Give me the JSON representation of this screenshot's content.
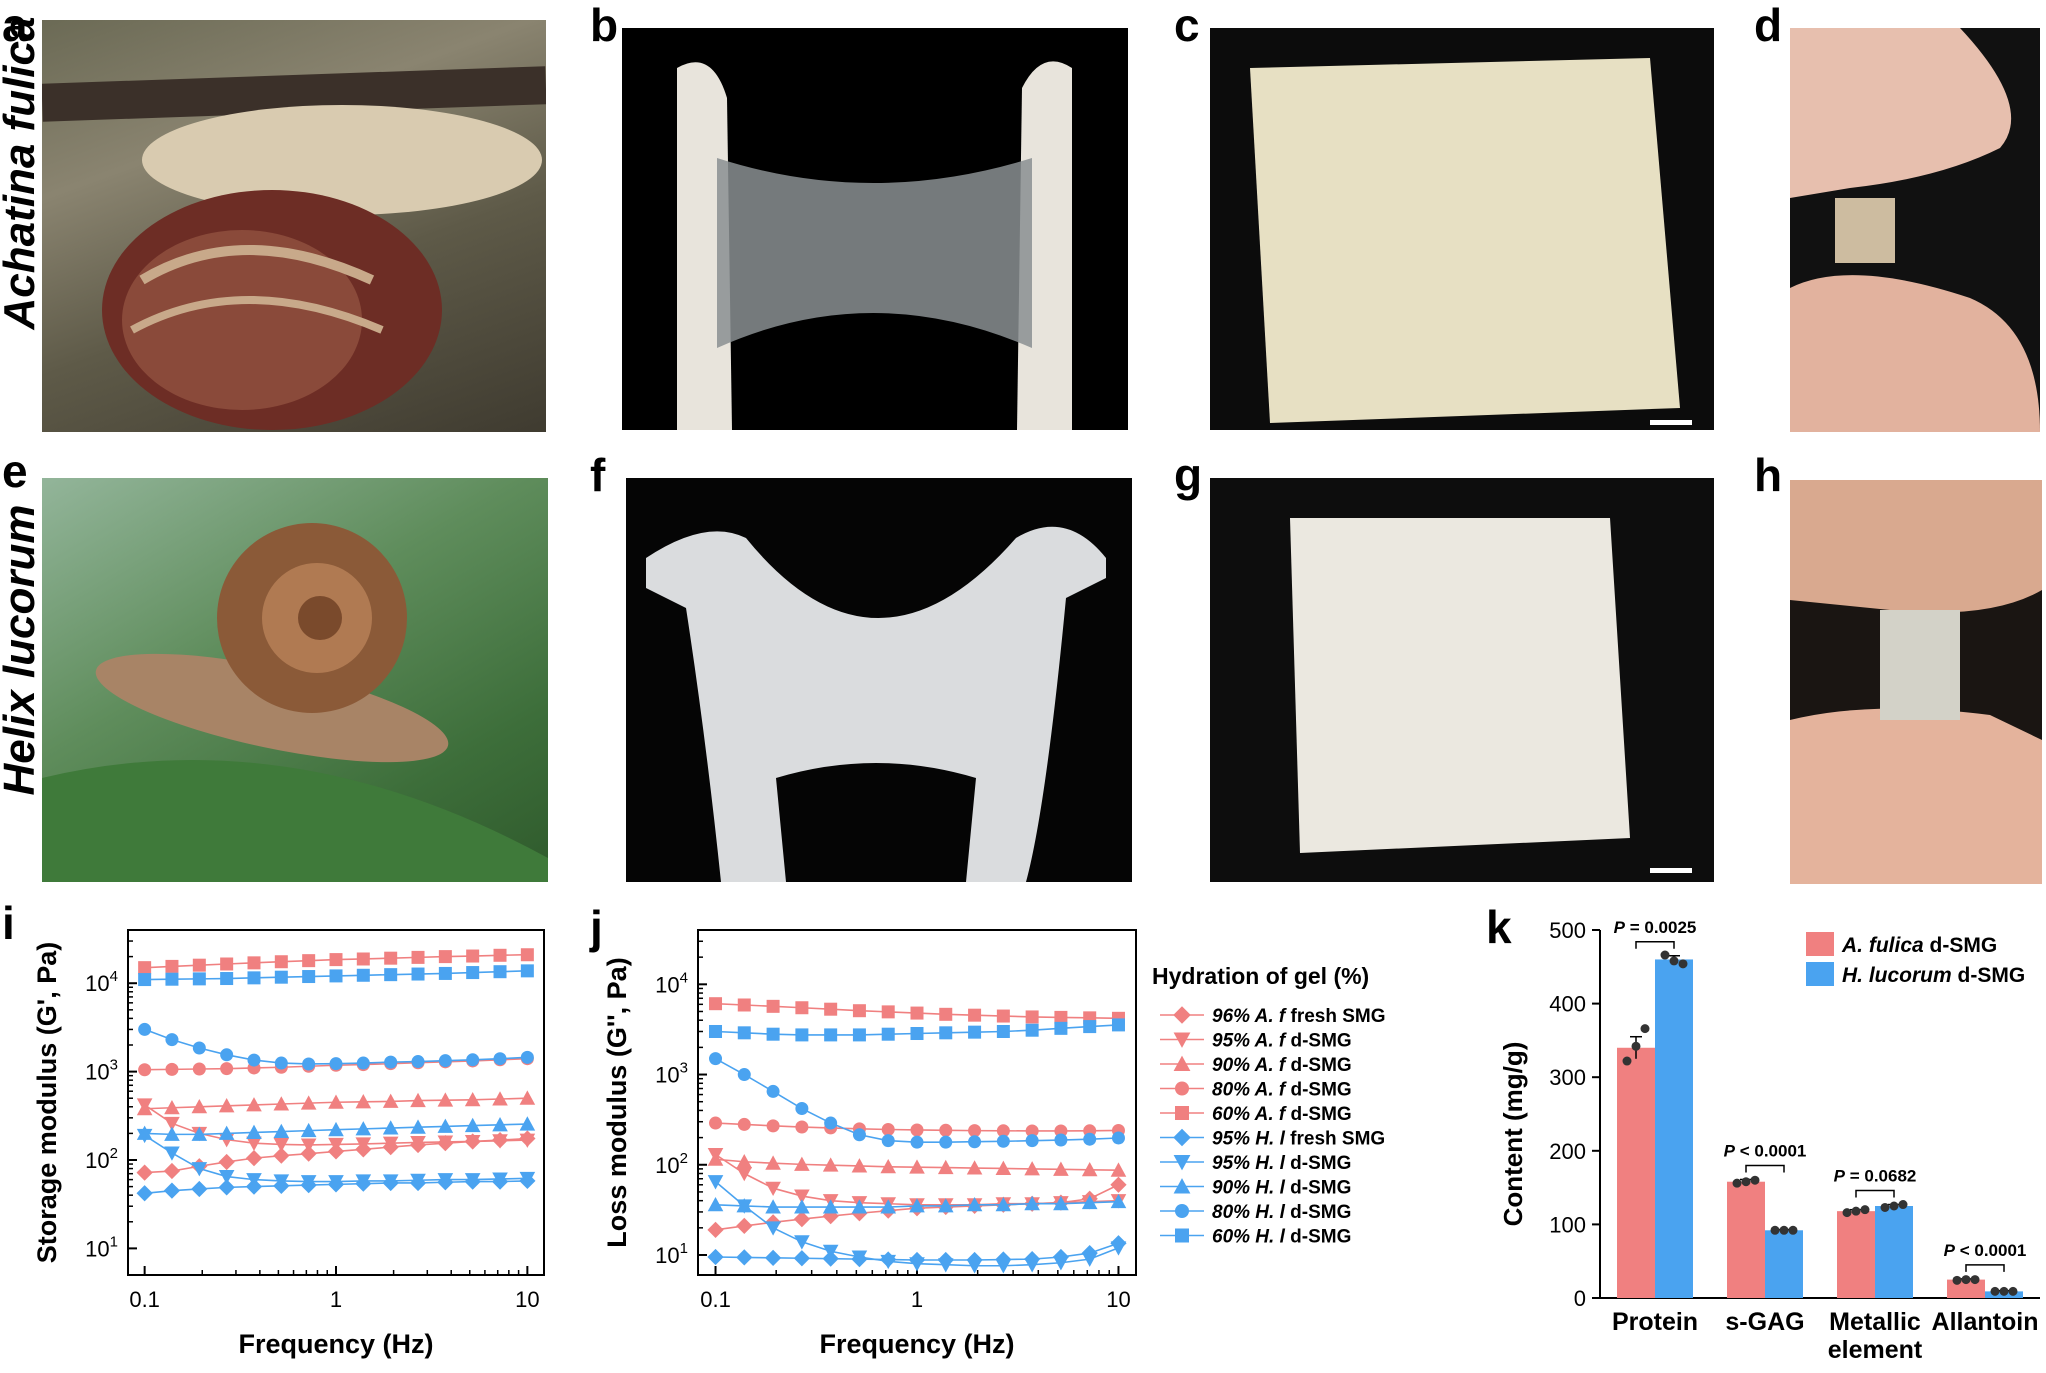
{
  "panels": {
    "a": "a",
    "b": "b",
    "c": "c",
    "d": "d",
    "e": "e",
    "f": "f",
    "g": "g",
    "h": "h",
    "i": "i",
    "j": "j",
    "k": "k"
  },
  "species_labels": {
    "top": "Achatina fulica",
    "bottom": "Helix lucorum"
  },
  "colors": {
    "red": "#f08080",
    "blue": "#4aa3f0",
    "red_dark": "#e66a6a",
    "blue_dark": "#3a8de0"
  },
  "chart_data": [
    {
      "type": "line",
      "panel": "i",
      "xlabel": "Frequency (Hz)",
      "ylabel": "Storage modulus (G', Pa)",
      "xscale": "log",
      "yscale": "log",
      "xlim": [
        0.1,
        10
      ],
      "ylim": [
        5,
        40000
      ],
      "xticks": [
        "0.1",
        "1",
        "10"
      ],
      "yticks": [
        {
          "v": 10,
          "base": "10",
          "exp": "1"
        },
        {
          "v": 100,
          "base": "10",
          "exp": "2"
        },
        {
          "v": 1000,
          "base": "10",
          "exp": "3"
        },
        {
          "v": 10000,
          "base": "10",
          "exp": "4"
        }
      ],
      "x": [
        0.1,
        0.1389,
        0.1931,
        0.2683,
        0.3728,
        0.5179,
        0.7197,
        1.0,
        1.389,
        1.931,
        2.683,
        3.728,
        5.179,
        7.197,
        10.0
      ],
      "series": [
        {
          "name": "96% A. f fresh SMG",
          "color": "#f08080",
          "marker": "diamond",
          "values": [
            72,
            75,
            85,
            95,
            105,
            112,
            118,
            125,
            132,
            140,
            148,
            155,
            162,
            168,
            175
          ]
        },
        {
          "name": "95% A. f d-SMG",
          "color": "#f08080",
          "marker": "tri-down",
          "values": [
            420,
            260,
            200,
            170,
            155,
            150,
            148,
            150,
            152,
            155,
            158,
            160,
            162,
            165,
            168
          ]
        },
        {
          "name": "90% A. f d-SMG",
          "color": "#f08080",
          "marker": "tri-up",
          "values": [
            380,
            390,
            400,
            410,
            420,
            430,
            440,
            450,
            455,
            460,
            470,
            475,
            480,
            490,
            500
          ]
        },
        {
          "name": "80% A. f d-SMG",
          "color": "#f08080",
          "marker": "circle",
          "values": [
            1050,
            1060,
            1070,
            1080,
            1100,
            1120,
            1150,
            1180,
            1200,
            1230,
            1260,
            1290,
            1320,
            1360,
            1400
          ]
        },
        {
          "name": "60% A. f d-SMG",
          "color": "#f08080",
          "marker": "square",
          "values": [
            15000,
            15500,
            16000,
            16500,
            17000,
            17500,
            18000,
            18500,
            18800,
            19200,
            19600,
            20000,
            20300,
            20700,
            21000
          ]
        },
        {
          "name": "95% H. l fresh SMG",
          "color": "#4aa3f0",
          "marker": "diamond",
          "values": [
            42,
            45,
            47,
            49,
            50,
            51,
            52,
            53,
            54,
            55,
            55,
            56,
            57,
            57,
            58
          ]
        },
        {
          "name": "95% H. l d-SMG",
          "color": "#4aa3f0",
          "marker": "tri-down",
          "values": [
            190,
            120,
            80,
            65,
            60,
            58,
            57,
            57,
            58,
            58,
            59,
            60,
            60,
            61,
            62
          ]
        },
        {
          "name": "90% H. l d-SMG",
          "color": "#4aa3f0",
          "marker": "tri-up",
          "values": [
            200,
            195,
            195,
            200,
            205,
            210,
            215,
            220,
            225,
            230,
            235,
            240,
            245,
            250,
            255
          ]
        },
        {
          "name": "80% H. l d-SMG",
          "color": "#4aa3f0",
          "marker": "circle",
          "values": [
            3000,
            2300,
            1850,
            1550,
            1350,
            1250,
            1220,
            1230,
            1250,
            1280,
            1300,
            1330,
            1360,
            1400,
            1450
          ]
        },
        {
          "name": "60% H. l d-SMG",
          "color": "#4aa3f0",
          "marker": "square",
          "values": [
            11000,
            11100,
            11200,
            11300,
            11500,
            11700,
            11900,
            12100,
            12300,
            12500,
            12700,
            12900,
            13200,
            13500,
            13800
          ]
        }
      ]
    },
    {
      "type": "line",
      "panel": "j",
      "xlabel": "Frequency (Hz)",
      "ylabel": "Loss modulus (G'', Pa)",
      "xscale": "log",
      "yscale": "log",
      "xlim": [
        0.1,
        10
      ],
      "ylim": [
        6,
        40000
      ],
      "xticks": [
        "0.1",
        "1",
        "10"
      ],
      "yticks": [
        {
          "v": 10,
          "base": "10",
          "exp": "1"
        },
        {
          "v": 100,
          "base": "10",
          "exp": "2"
        },
        {
          "v": 1000,
          "base": "10",
          "exp": "3"
        },
        {
          "v": 10000,
          "base": "10",
          "exp": "4"
        }
      ],
      "legend_title": "Hydration of gel (%)",
      "x": [
        0.1,
        0.1389,
        0.1931,
        0.2683,
        0.3728,
        0.5179,
        0.7197,
        1.0,
        1.389,
        1.931,
        2.683,
        3.728,
        5.179,
        7.197,
        10.0
      ],
      "series": [
        {
          "name": "96% A. f fresh SMG",
          "pct": "96%",
          "sp": "A. f",
          "suffix": "fresh SMG",
          "color": "#f08080",
          "marker": "diamond",
          "values": [
            19,
            21,
            23,
            25,
            27,
            29,
            31,
            33,
            34,
            35,
            36,
            37,
            38,
            42,
            60
          ]
        },
        {
          "name": "95% A. f d-SMG",
          "pct": "95%",
          "sp": "A. f",
          "suffix": "d-SMG",
          "color": "#f08080",
          "marker": "tri-down",
          "values": [
            130,
            80,
            55,
            45,
            40,
            38,
            37,
            36,
            36,
            36,
            37,
            37,
            38,
            39,
            40
          ]
        },
        {
          "name": "90% A. f d-SMG",
          "pct": "90%",
          "sp": "A. f",
          "suffix": "d-SMG",
          "color": "#f08080",
          "marker": "tri-up",
          "values": [
            115,
            108,
            104,
            101,
            99,
            97,
            95,
            94,
            93,
            92,
            91,
            90,
            89,
            88,
            87
          ]
        },
        {
          "name": "80% A. f d-SMG",
          "pct": "80%",
          "sp": "A. f",
          "suffix": "d-SMG",
          "color": "#f08080",
          "marker": "circle",
          "values": [
            290,
            280,
            270,
            262,
            256,
            250,
            246,
            243,
            241,
            239,
            238,
            237,
            237,
            238,
            240
          ]
        },
        {
          "name": "60% A. f d-SMG",
          "pct": "60%",
          "sp": "A. f",
          "suffix": "d-SMG",
          "color": "#f08080",
          "marker": "square",
          "values": [
            6100,
            5900,
            5700,
            5500,
            5300,
            5100,
            4950,
            4800,
            4650,
            4550,
            4450,
            4350,
            4300,
            4250,
            4200
          ]
        },
        {
          "name": "95% H. l fresh SMG",
          "pct": "95%",
          "sp": "H. l",
          "suffix": "fresh SMG",
          "color": "#4aa3f0",
          "marker": "diamond",
          "values": [
            9.5,
            9.4,
            9.3,
            9.2,
            9.1,
            9.0,
            8.9,
            8.8,
            8.8,
            8.8,
            8.9,
            9.0,
            9.5,
            10.5,
            13.5
          ]
        },
        {
          "name": "95% H. l d-SMG",
          "pct": "95%",
          "sp": "H. l",
          "suffix": "d-SMG",
          "color": "#4aa3f0",
          "marker": "tri-down",
          "values": [
            65,
            35,
            20,
            14,
            11,
            9.5,
            8.5,
            8,
            7.8,
            7.6,
            7.6,
            7.8,
            8.2,
            9,
            12
          ]
        },
        {
          "name": "90% H. l d-SMG",
          "pct": "90%",
          "sp": "H. l",
          "suffix": "d-SMG",
          "color": "#4aa3f0",
          "marker": "tri-up",
          "values": [
            36,
            35,
            34,
            34,
            34,
            34,
            34,
            35,
            35,
            36,
            36,
            37,
            37,
            38,
            39
          ]
        },
        {
          "name": "80% H. l d-SMG",
          "pct": "80%",
          "sp": "H. l",
          "suffix": "d-SMG",
          "color": "#4aa3f0",
          "marker": "circle",
          "values": [
            1500,
            1000,
            650,
            420,
            290,
            215,
            185,
            178,
            178,
            180,
            182,
            185,
            188,
            192,
            198
          ]
        },
        {
          "name": "60% H. l d-SMG",
          "pct": "60%",
          "sp": "H. l",
          "suffix": "d-SMG",
          "color": "#4aa3f0",
          "marker": "square",
          "values": [
            3000,
            2900,
            2800,
            2750,
            2750,
            2750,
            2800,
            2850,
            2900,
            2950,
            3000,
            3100,
            3250,
            3400,
            3550
          ]
        }
      ]
    },
    {
      "type": "bar",
      "panel": "k",
      "ylabel": "Content (mg/g)",
      "ylim": [
        0,
        500
      ],
      "yticks": [
        0,
        100,
        200,
        300,
        400,
        500
      ],
      "categories": [
        "Protein",
        "s-GAG",
        "Metallic element",
        "Allantoin"
      ],
      "category_lines": [
        [
          "Protein"
        ],
        [
          "s-GAG"
        ],
        [
          "Metallic",
          "element"
        ],
        [
          "Allantoin"
        ]
      ],
      "series": [
        {
          "name_italic": "A. fulica",
          "name_rest": " d-SMG",
          "color": "#f08080",
          "values": [
            340,
            158,
            118,
            25
          ],
          "errors": [
            15,
            3,
            2,
            1
          ],
          "points": [
            [
              322,
              342,
              366
            ],
            [
              156,
              158,
              160
            ],
            [
              116,
              118,
              120
            ],
            [
              24,
              25,
              25
            ]
          ]
        },
        {
          "name_italic": "H. lucorum",
          "name_rest": " d-SMG",
          "color": "#4aa3f0",
          "values": [
            460,
            92,
            125,
            9
          ],
          "errors": [
            5,
            1,
            2,
            1
          ],
          "points": [
            [
              466,
              458,
              454
            ],
            [
              92,
              92,
              92
            ],
            [
              123,
              125,
              127
            ],
            [
              9,
              9,
              9
            ]
          ]
        }
      ],
      "pvalues": [
        "P = 0.0025",
        "P < 0.0001",
        "P = 0.0682",
        "P < 0.0001"
      ]
    }
  ]
}
